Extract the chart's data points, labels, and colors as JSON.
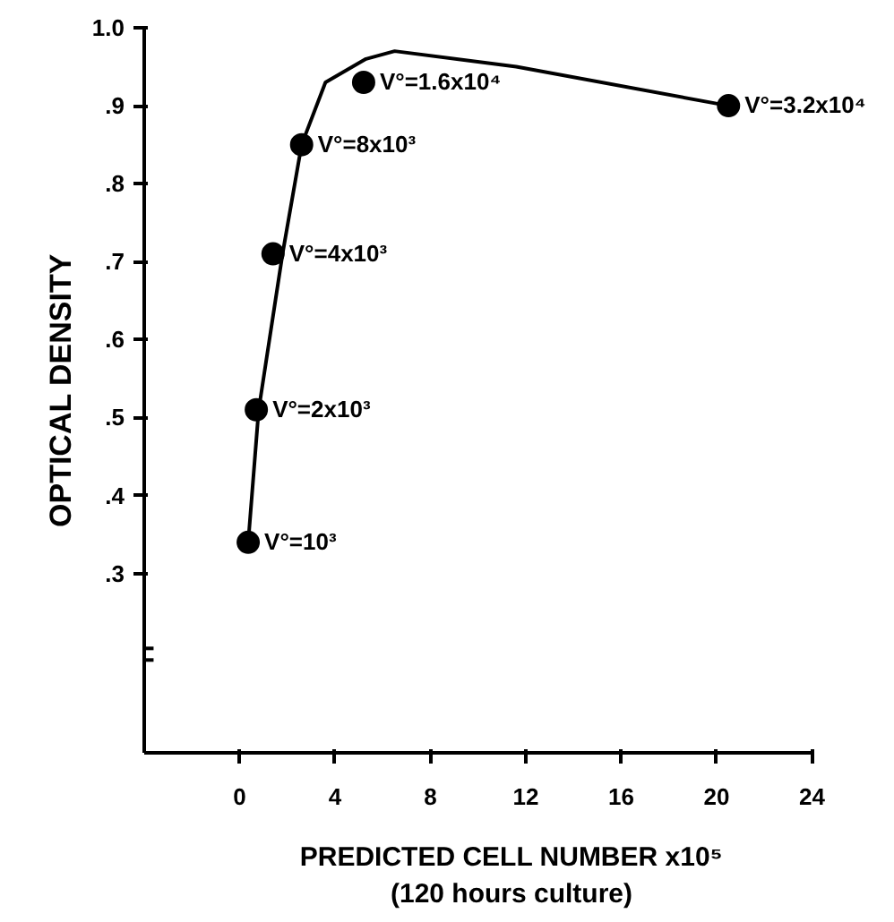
{
  "chart_data": {
    "type": "scatter",
    "xlabel": "PREDICTED CELL NUMBER x10⁵\n(120 hours culture)",
    "ylabel": "OPTICAL DENSITY",
    "xlim": [
      -4,
      24
    ],
    "ylim": [
      0.07,
      1.0
    ],
    "xticks": [
      0,
      4,
      8,
      12,
      16,
      20,
      24
    ],
    "yticks": [
      {
        "value": 0.3,
        "label": ".3"
      },
      {
        "value": 0.4,
        "label": ".4"
      },
      {
        "value": 0.5,
        "label": ".5"
      },
      {
        "value": 0.6,
        "label": ".6"
      },
      {
        "value": 0.7,
        "label": ".7"
      },
      {
        "value": 0.8,
        "label": ".8"
      },
      {
        "value": 0.9,
        "label": ".9"
      },
      {
        "value": 1.0,
        "label": "1.0"
      }
    ],
    "grid": false,
    "series": [
      {
        "color": "#000000",
        "marker": "circle",
        "x": [
          0.36,
          0.7,
          1.4,
          2.6,
          5.2,
          20.5
        ],
        "values": [
          0.34,
          0.51,
          0.71,
          0.85,
          0.93,
          0.9
        ]
      },
      {
        "type": "line",
        "color": "#000000",
        "marker": "none",
        "line_style": "solid",
        "x": [
          0.36,
          0.8,
          1.8,
          2.6,
          3.6,
          5.3,
          6.5,
          11.6,
          20.5
        ],
        "values": [
          0.34,
          0.51,
          0.71,
          0.85,
          0.93,
          0.96,
          0.97,
          0.95,
          0.9
        ]
      }
    ],
    "annotations": [
      {
        "text": "V°=10³",
        "x": 0.36,
        "y": 0.34
      },
      {
        "text": "V°=2x10³",
        "x": 0.7,
        "y": 0.51
      },
      {
        "text": "V°=4x10³",
        "x": 1.4,
        "y": 0.71
      },
      {
        "text": "V°=8x10³",
        "x": 2.6,
        "y": 0.85
      },
      {
        "text": "V°=1.6x10⁴",
        "x": 5.2,
        "y": 0.93
      },
      {
        "text": "V°=3.2x10⁴",
        "x": 20.5,
        "y": 0.9
      }
    ]
  }
}
